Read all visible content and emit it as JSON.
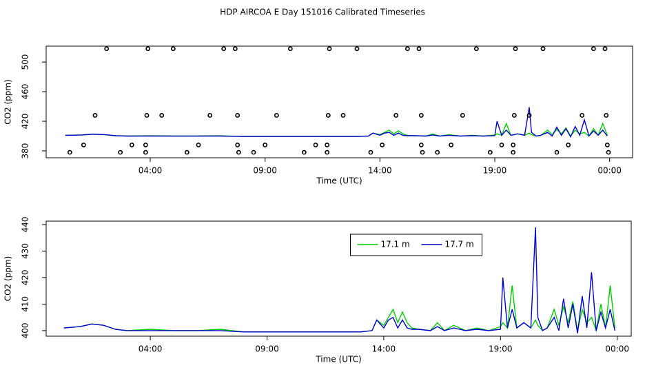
{
  "title": "HDP AIRCOA E  Day 151016  Calibrated Timeseries",
  "chart_data": [
    {
      "type": "line",
      "xlabel": "Time (UTC)",
      "ylabel": "CO2 (ppm)",
      "xlim": [
        -0.53,
        25.0
      ],
      "ylim": [
        370.7,
        521.5
      ],
      "xticks": [
        {
          "value": 4,
          "label": "04:00"
        },
        {
          "value": 9,
          "label": "09:00"
        },
        {
          "value": 14,
          "label": "14:00"
        },
        {
          "value": 19,
          "label": "19:00"
        },
        {
          "value": 24,
          "label": "00:00"
        }
      ],
      "yticks": [
        380,
        420,
        460,
        500
      ],
      "x": [
        0.3,
        1,
        1.5,
        2,
        2.5,
        3,
        4,
        5,
        6,
        7,
        8,
        9,
        10,
        11,
        12,
        13,
        13.5,
        13.7,
        14,
        14.2,
        14.4,
        14.6,
        14.8,
        15,
        15.2,
        15.5,
        16,
        16.3,
        16.6,
        17,
        17.5,
        18,
        18.5,
        19,
        19.1,
        19.3,
        19.5,
        19.7,
        20,
        20.3,
        20.5,
        20.6,
        20.8,
        21,
        21.3,
        21.5,
        21.7,
        21.9,
        22.1,
        22.3,
        22.5,
        22.7,
        22.9,
        23.1,
        23.3,
        23.5,
        23.7,
        23.9
      ],
      "series": [
        {
          "name": "17.1 m",
          "color": "#00cc00",
          "values": [
            401,
            401.5,
            402.5,
            402,
            400.5,
            400,
            400.5,
            400,
            400,
            400.5,
            399.5,
            399.5,
            399.5,
            399.5,
            399.5,
            399.5,
            400,
            404,
            402,
            405,
            408,
            403,
            407,
            403,
            401,
            400.5,
            400,
            403,
            400,
            402,
            400,
            401,
            400,
            401.5,
            403,
            401,
            417,
            401,
            403,
            401,
            404,
            402,
            400,
            401,
            408,
            402,
            409,
            403,
            411,
            400,
            408,
            403,
            405,
            400,
            410,
            401,
            417,
            401
          ]
        },
        {
          "name": "17.7 m",
          "color": "#0000cc",
          "values": [
            401,
            401.5,
            402.5,
            402,
            400.5,
            400,
            400,
            400,
            400,
            400,
            399.5,
            399.5,
            399.5,
            399.5,
            399.5,
            399.5,
            400,
            404,
            401,
            404,
            405,
            401,
            404,
            401,
            400.5,
            400.5,
            400,
            401.5,
            400,
            401,
            400,
            400.5,
            400,
            400.5,
            420,
            401,
            408,
            401,
            403,
            401,
            439,
            405,
            400,
            401,
            405,
            400,
            412,
            401,
            410,
            399,
            413,
            401,
            422,
            400,
            407,
            401,
            408,
            400
          ]
        }
      ],
      "points": {
        "color": "#000000",
        "x": [
          0.5,
          1.1,
          1.6,
          2.1,
          2.7,
          3.2,
          3.8,
          3.8,
          3.85,
          3.9,
          4.5,
          5.0,
          5.6,
          6.1,
          6.6,
          7.2,
          7.7,
          7.8,
          7.8,
          7.85,
          8.5,
          9.0,
          9.5,
          10.1,
          10.7,
          11.2,
          11.7,
          11.7,
          11.75,
          11.8,
          12.4,
          13.0,
          13.6,
          14.1,
          14.7,
          15.2,
          15.7,
          15.8,
          15.8,
          15.85,
          16.5,
          17.1,
          17.6,
          18.2,
          18.8,
          19.3,
          19.8,
          19.8,
          19.85,
          19.9,
          20.5,
          21.1,
          21.7,
          22.2,
          22.8,
          23.3,
          23.8,
          23.85,
          23.9,
          23.95
        ],
        "values": [
          378,
          388,
          428,
          518,
          378,
          388,
          378,
          388,
          428,
          518,
          428,
          518,
          378,
          388,
          428,
          518,
          518,
          428,
          388,
          378,
          378,
          388,
          428,
          518,
          378,
          388,
          388,
          378,
          428,
          518,
          428,
          518,
          378,
          388,
          428,
          518,
          518,
          428,
          388,
          378,
          378,
          388,
          428,
          518,
          378,
          388,
          378,
          388,
          428,
          518,
          428,
          518,
          378,
          388,
          428,
          518,
          518,
          428,
          388,
          378
        ]
      }
    },
    {
      "type": "line",
      "xlabel": "Time (UTC)",
      "ylabel": "CO2 (ppm)",
      "legend": "top-right",
      "xlim": [
        -0.46,
        24.6
      ],
      "ylim": [
        397.9,
        441.3
      ],
      "xticks": [
        {
          "value": 4,
          "label": "04:00"
        },
        {
          "value": 9,
          "label": "09:00"
        },
        {
          "value": 14,
          "label": "14:00"
        },
        {
          "value": 19,
          "label": "19:00"
        },
        {
          "value": 24,
          "label": "00:00"
        }
      ],
      "yticks": [
        400,
        410,
        420,
        430,
        440
      ],
      "x": [
        0.3,
        1,
        1.5,
        2,
        2.5,
        3,
        4,
        5,
        6,
        7,
        8,
        9,
        10,
        11,
        12,
        13,
        13.5,
        13.7,
        14,
        14.2,
        14.4,
        14.6,
        14.8,
        15,
        15.2,
        15.5,
        16,
        16.3,
        16.6,
        17,
        17.5,
        18,
        18.5,
        19,
        19.1,
        19.3,
        19.5,
        19.7,
        20,
        20.3,
        20.5,
        20.6,
        20.8,
        21,
        21.3,
        21.5,
        21.7,
        21.9,
        22.1,
        22.3,
        22.5,
        22.7,
        22.9,
        23.1,
        23.3,
        23.5,
        23.7,
        23.9
      ],
      "series": [
        {
          "name": "17.1 m",
          "color": "#00cc00",
          "values": [
            401,
            401.5,
            402.5,
            402,
            400.5,
            400,
            400.5,
            400,
            400,
            400.5,
            399.5,
            399.5,
            399.5,
            399.5,
            399.5,
            399.5,
            400,
            404,
            402,
            405,
            408,
            403,
            407,
            403,
            401,
            400.5,
            400,
            403,
            400,
            402,
            400,
            401,
            400,
            401.5,
            403,
            401,
            417,
            401,
            403,
            401,
            404,
            402,
            400,
            401,
            408,
            402,
            409,
            403,
            411,
            400,
            408,
            403,
            405,
            400,
            410,
            401,
            417,
            401
          ]
        },
        {
          "name": "17.7 m",
          "color": "#0000cc",
          "values": [
            401,
            401.5,
            402.5,
            402,
            400.5,
            400,
            400,
            400,
            400,
            400,
            399.5,
            399.5,
            399.5,
            399.5,
            399.5,
            399.5,
            400,
            404,
            401,
            404,
            405,
            401,
            404,
            401,
            400.5,
            400.5,
            400,
            401.5,
            400,
            401,
            400,
            400.5,
            400,
            400.5,
            420,
            401,
            408,
            401,
            403,
            401,
            439,
            405,
            400,
            401,
            405,
            400,
            412,
            401,
            410,
            399,
            413,
            401,
            422,
            400,
            407,
            401,
            408,
            400
          ]
        }
      ]
    }
  ]
}
